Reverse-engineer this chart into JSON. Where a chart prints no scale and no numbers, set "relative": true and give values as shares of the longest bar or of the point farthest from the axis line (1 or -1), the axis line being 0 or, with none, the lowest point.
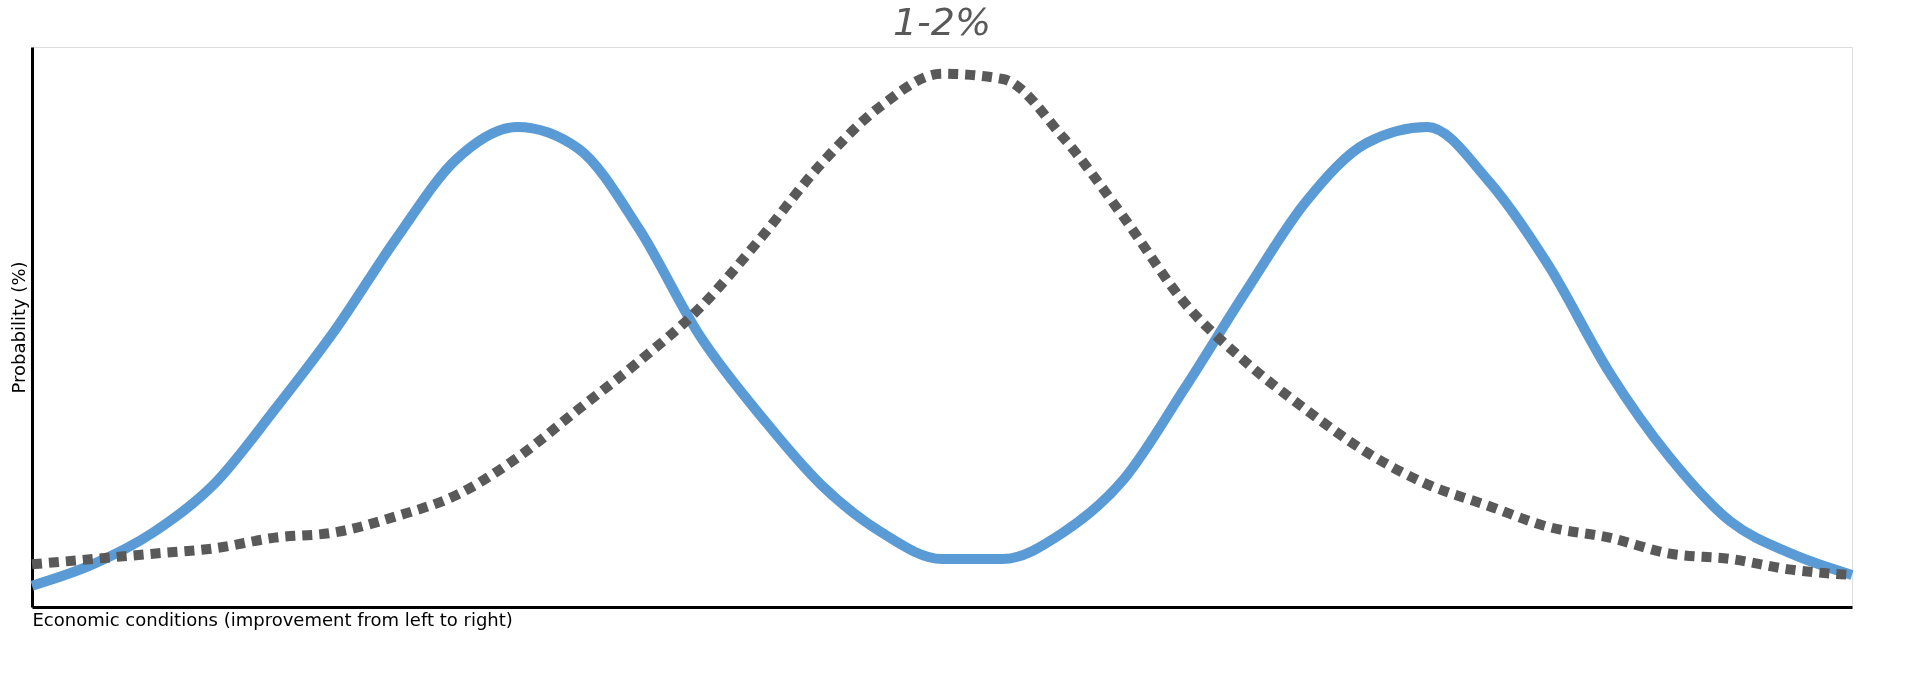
{
  "chart_data": {
    "type": "line",
    "relative": true,
    "xlabel": "Economic conditions (improvement from left to right)",
    "ylabel": "Probability (%)",
    "annotations": [
      "1-2%"
    ],
    "tick_labels": false,
    "grid": false,
    "marker": "none",
    "categories": [
      null,
      null,
      null,
      null,
      null,
      null,
      null,
      null,
      null,
      null,
      null,
      null,
      null,
      null,
      null,
      null,
      null,
      null,
      null,
      null,
      null,
      null,
      null,
      null,
      null,
      null,
      null,
      null,
      null,
      null,
      null
    ],
    "series": [
      {
        "color": "#5b9bd5",
        "line_style": "solid",
        "values": [
          0.04,
          0.08,
          0.14,
          0.23,
          0.37,
          0.52,
          0.69,
          0.84,
          0.9,
          0.86,
          0.71,
          0.51,
          0.36,
          0.23,
          0.14,
          0.09,
          0.09,
          0.14,
          0.24,
          0.41,
          0.59,
          0.76,
          0.87,
          0.9,
          0.8,
          0.64,
          0.44,
          0.28,
          0.16,
          0.1,
          0.06
        ]
      },
      {
        "color": "#595959",
        "line_style": "dashed",
        "values": [
          0.08,
          0.09,
          0.1,
          0.11,
          0.13,
          0.14,
          0.17,
          0.21,
          0.28,
          0.37,
          0.46,
          0.56,
          0.69,
          0.83,
          0.94,
          1.0,
          0.99,
          0.88,
          0.73,
          0.57,
          0.46,
          0.37,
          0.29,
          0.23,
          0.19,
          0.15,
          0.13,
          0.1,
          0.09,
          0.07,
          0.06
        ]
      }
    ]
  }
}
